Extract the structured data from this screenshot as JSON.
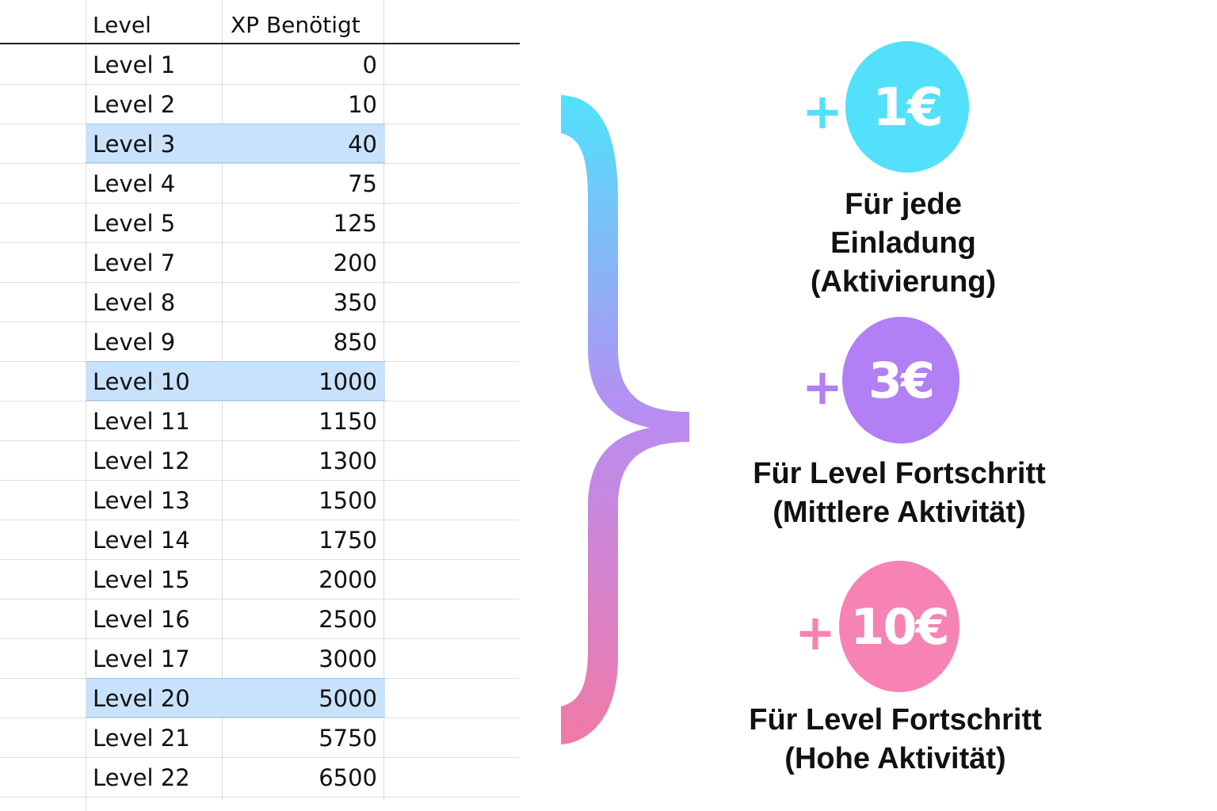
{
  "table": {
    "headers": {
      "level": "Level",
      "xp": "XP Benötigt"
    },
    "rows": [
      {
        "level": "Level 1",
        "xp": "0",
        "highlighted": false
      },
      {
        "level": "Level 2",
        "xp": "10",
        "highlighted": false
      },
      {
        "level": "Level 3",
        "xp": "40",
        "highlighted": true
      },
      {
        "level": "Level 4",
        "xp": "75",
        "highlighted": false
      },
      {
        "level": "Level 5",
        "xp": "125",
        "highlighted": false
      },
      {
        "level": "Level 7",
        "xp": "200",
        "highlighted": false
      },
      {
        "level": "Level 8",
        "xp": "350",
        "highlighted": false
      },
      {
        "level": "Level 9",
        "xp": "850",
        "highlighted": false
      },
      {
        "level": "Level 10",
        "xp": "1000",
        "highlighted": true
      },
      {
        "level": "Level 11",
        "xp": "1150",
        "highlighted": false
      },
      {
        "level": "Level 12",
        "xp": "1300",
        "highlighted": false
      },
      {
        "level": "Level 13",
        "xp": "1500",
        "highlighted": false
      },
      {
        "level": "Level 14",
        "xp": "1750",
        "highlighted": false
      },
      {
        "level": "Level 15",
        "xp": "2000",
        "highlighted": false
      },
      {
        "level": "Level 16",
        "xp": "2500",
        "highlighted": false
      },
      {
        "level": "Level 17",
        "xp": "3000",
        "highlighted": false
      },
      {
        "level": "Level 20",
        "xp": "5000",
        "highlighted": true
      },
      {
        "level": "Level 21",
        "xp": "5750",
        "highlighted": false
      },
      {
        "level": "Level 22",
        "xp": "6500",
        "highlighted": false
      }
    ],
    "highlight_color": "#c8e2fb"
  },
  "rewards": [
    {
      "plus": "+",
      "amount": "1€",
      "color": "#52e0fa",
      "description_lines": [
        "Für jede",
        "Einladung",
        "(Aktivierung)"
      ]
    },
    {
      "plus": "+",
      "amount": "3€",
      "color": "#b27ff4",
      "description_lines": [
        "Für Level Fortschritt",
        "(Mittlere Aktivität)"
      ]
    },
    {
      "plus": "+",
      "amount": "10€",
      "color": "#f683b4",
      "description_lines": [
        "Für Level Fortschritt",
        "(Hohe Aktivität)"
      ]
    }
  ],
  "brace": {
    "gradient_colors": [
      "#4fe2fb",
      "#b98cf1",
      "#f07aa6"
    ],
    "icon": "curly-brace-icon"
  }
}
